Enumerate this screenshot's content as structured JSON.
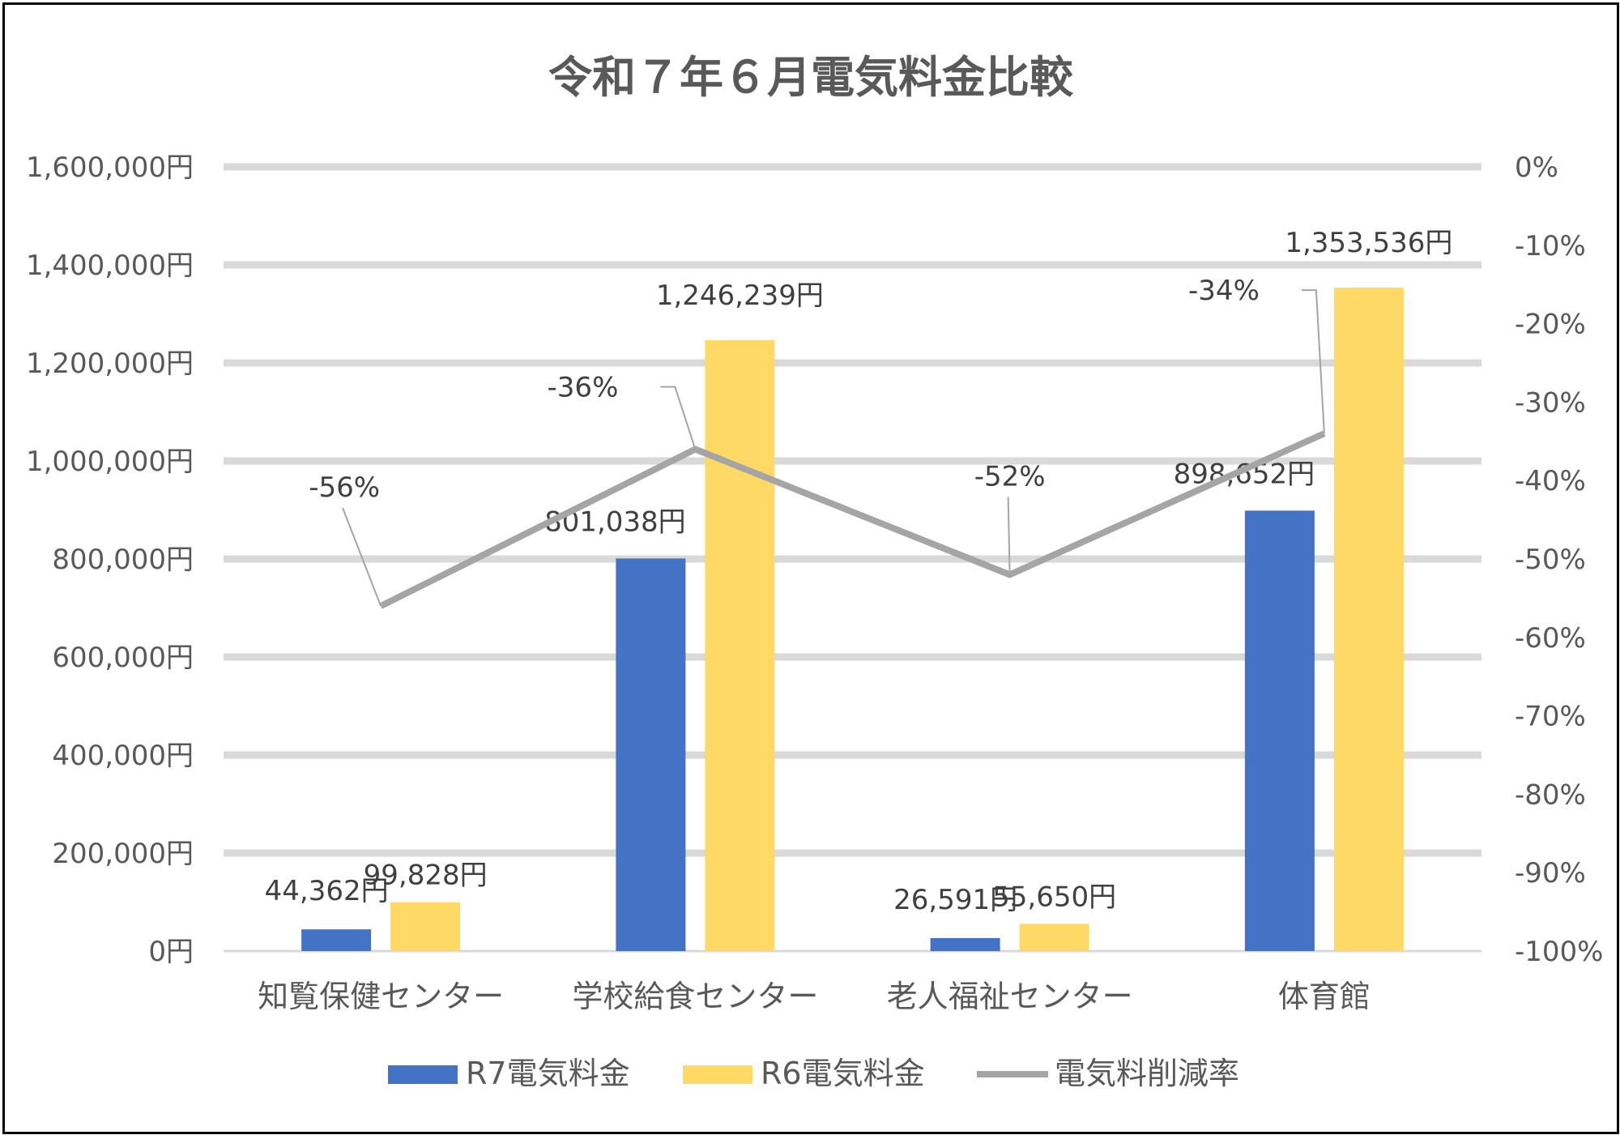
{
  "chart_data": {
    "type": "bar",
    "title": "令和７年６月電気料金比較",
    "categories": [
      "知覧保健センター",
      "学校給食センター",
      "老人福祉センター",
      "体育館"
    ],
    "series": [
      {
        "name": "R7電気料金",
        "kind": "bar",
        "axis": "left",
        "color": "#4472C4",
        "values": [
          44362,
          801038,
          26591,
          898652
        ],
        "labels": [
          "44,362円",
          "801,038円",
          "26,591円",
          "898,652円"
        ]
      },
      {
        "name": "R6電気料金",
        "kind": "bar",
        "axis": "left",
        "color": "#FFD966",
        "values": [
          99828,
          1246239,
          55650,
          1353536
        ],
        "labels": [
          "99,828円",
          "1,246,239円",
          "55,650円",
          "1,353,536円"
        ]
      },
      {
        "name": "電気料削減率",
        "kind": "line",
        "axis": "right",
        "color": "#A5A5A5",
        "values": [
          -56,
          -36,
          -52,
          -34
        ],
        "labels": [
          "-56%",
          "-36%",
          "-52%",
          "-34%"
        ]
      }
    ],
    "y_left": {
      "range": [
        0,
        1600000
      ],
      "ticks": [
        "0円",
        "200,000円",
        "400,000円",
        "600,000円",
        "800,000円",
        "1,000,000円",
        "1,200,000円",
        "1,400,000円",
        "1,600,000円"
      ]
    },
    "y_right": {
      "range": [
        -100,
        0
      ],
      "ticks": [
        "-100%",
        "-90%",
        "-80%",
        "-70%",
        "-60%",
        "-50%",
        "-40%",
        "-30%",
        "-20%",
        "-10%",
        "0%"
      ]
    },
    "grid": true,
    "legend_position": "bottom"
  }
}
